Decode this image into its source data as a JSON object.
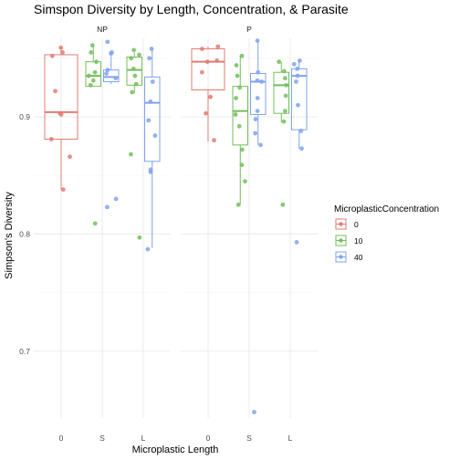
{
  "chart_data": {
    "type": "box",
    "title": "Simspon Diversity by Length, Concentration, & Parasite",
    "xlabel": "Microplastic Length",
    "ylabel": "Simpson's Diversity",
    "x_categories": [
      "0",
      "S",
      "L"
    ],
    "y_ticks": [
      0.7,
      0.8,
      0.9
    ],
    "y_tick_labels": [
      "0.7",
      "0.8",
      "0.9"
    ],
    "ylim": [
      0.643,
      0.967
    ],
    "grid": true,
    "legend": {
      "title": "MicroplasticConcentration",
      "position": "right",
      "entries": [
        {
          "label": "0",
          "color": "#E07B73"
        },
        {
          "label": "10",
          "color": "#72BF5A"
        },
        {
          "label": "40",
          "color": "#7FA3EE"
        }
      ]
    },
    "panels": [
      {
        "strip": "NP",
        "boxes": [
          {
            "x": "0",
            "concentration": "0",
            "q1": 0.881,
            "median": 0.904,
            "q3": 0.953,
            "whisker_low": 0.838,
            "whisker_high": 0.959,
            "points": [
              0.959,
              0.955,
              0.952,
              0.922,
              0.903,
              0.902,
              0.881,
              0.866,
              0.838
            ]
          },
          {
            "x": "S",
            "concentration": "10",
            "q1": 0.926,
            "median": 0.935,
            "q3": 0.947,
            "whisker_low": 0.926,
            "whisker_high": 0.961,
            "points": [
              0.961,
              0.955,
              0.947,
              0.938,
              0.935,
              0.931,
              0.927,
              0.809
            ]
          },
          {
            "x": "S",
            "concentration": "40",
            "q1": 0.93,
            "median": 0.934,
            "q3": 0.94,
            "whisker_low": 0.928,
            "whisker_high": 0.952,
            "points": [
              0.964,
              0.955,
              0.954,
              0.94,
              0.937,
              0.933,
              0.83,
              0.823
            ]
          },
          {
            "x": "L",
            "concentration": "10",
            "q1": 0.927,
            "median": 0.94,
            "q3": 0.951,
            "whisker_low": 0.92,
            "whisker_high": 0.955,
            "points": [
              0.957,
              0.953,
              0.95,
              0.941,
              0.935,
              0.928,
              0.921,
              0.868,
              0.797
            ]
          },
          {
            "x": "L",
            "concentration": "40",
            "q1": 0.862,
            "median": 0.912,
            "q3": 0.934,
            "whisker_low": 0.788,
            "whisker_high": 0.957,
            "points": [
              0.958,
              0.95,
              0.93,
              0.913,
              0.897,
              0.884,
              0.855,
              0.853,
              0.787
            ]
          }
        ]
      },
      {
        "strip": "P",
        "boxes": [
          {
            "x": "0",
            "concentration": "0",
            "q1": 0.923,
            "median": 0.947,
            "q3": 0.958,
            "whisker_low": 0.879,
            "whisker_high": 0.96,
            "points": [
              0.96,
              0.958,
              0.948,
              0.947,
              0.938,
              0.917,
              0.903,
              0.88
            ]
          },
          {
            "x": "S",
            "concentration": "10",
            "q1": 0.876,
            "median": 0.905,
            "q3": 0.926,
            "whisker_low": 0.825,
            "whisker_high": 0.952,
            "points": [
              0.952,
              0.944,
              0.935,
              0.925,
              0.916,
              0.902,
              0.892,
              0.872,
              0.859,
              0.845,
              0.825
            ]
          },
          {
            "x": "S",
            "concentration": "40",
            "q1": 0.902,
            "median": 0.93,
            "q3": 0.937,
            "whisker_low": 0.876,
            "whisker_high": 0.965,
            "points": [
              0.965,
              0.938,
              0.931,
              0.93,
              0.916,
              0.905,
              0.898,
              0.886,
              0.876,
              0.648
            ]
          },
          {
            "x": "L",
            "concentration": "10",
            "q1": 0.903,
            "median": 0.927,
            "q3": 0.938,
            "whisker_low": 0.895,
            "whisker_high": 0.947,
            "points": [
              0.947,
              0.939,
              0.933,
              0.927,
              0.918,
              0.905,
              0.896,
              0.825
            ]
          },
          {
            "x": "L",
            "concentration": "40",
            "q1": 0.889,
            "median": 0.935,
            "q3": 0.941,
            "whisker_low": 0.873,
            "whisker_high": 0.948,
            "points": [
              0.948,
              0.945,
              0.941,
              0.935,
              0.93,
              0.91,
              0.888,
              0.873,
              0.793
            ]
          }
        ]
      }
    ]
  }
}
